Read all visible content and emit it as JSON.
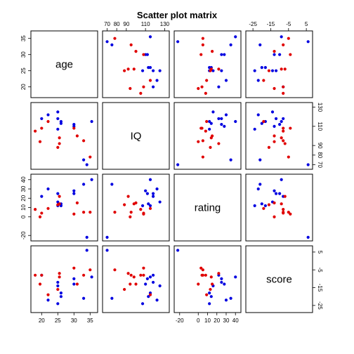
{
  "chart_data": {
    "type": "scatter",
    "title": "Scatter plot matrix",
    "variables": [
      "age",
      "IQ",
      "rating",
      "score"
    ],
    "colors": {
      "group1": "#e00000",
      "group2": "#0000e0"
    },
    "axes": {
      "age": {
        "ticks": [
          20,
          25,
          30,
          35
        ],
        "tick_labels": [
          "20",
          "25",
          "30",
          "35"
        ],
        "range": [
          17.5,
          36.5
        ],
        "tick_side": "bottom"
      },
      "IQ": {
        "ticks": [
          70,
          80,
          90,
          110,
          130
        ],
        "tick_labels": [
          "70",
          "80",
          "90",
          "110",
          "130"
        ],
        "range": [
          68,
          132
        ],
        "tick_side": "top"
      },
      "rating": {
        "ticks": [
          -20,
          0,
          10,
          20,
          30,
          40
        ],
        "tick_labels": [
          "-20",
          "0",
          "10",
          "20",
          "30",
          "40"
        ],
        "range": [
          -23,
          43
        ],
        "tick_side": "bottom"
      },
      "score": {
        "ticks": [
          -25,
          -15,
          -5,
          5
        ],
        "tick_labels": [
          "-25",
          "-15",
          "-5",
          "5"
        ],
        "range": [
          -27.5,
          7
        ],
        "tick_side": "top"
      }
    },
    "points": [
      {
        "group": "group2",
        "age": 34.0,
        "IQ": 70.0,
        "rating": -22.0,
        "score": 6.0
      },
      {
        "group": "group2",
        "age": 35.5,
        "IQ": 115.0,
        "rating": 40.0,
        "score": -9.0
      },
      {
        "group": "group2",
        "age": 33.0,
        "IQ": 75.0,
        "rating": 35.0,
        "score": -21.0
      },
      {
        "group": "group2",
        "age": 30.0,
        "IQ": 112.0,
        "rating": 25.0,
        "score": -10.0
      },
      {
        "group": "group2",
        "age": 30.0,
        "IQ": 110.0,
        "rating": 28.0,
        "score": -13.0
      },
      {
        "group": "group2",
        "age": 26.0,
        "IQ": 115.0,
        "rating": 12.0,
        "score": -18.0
      },
      {
        "group": "group2",
        "age": 25.0,
        "IQ": 107.0,
        "rating": 12.0,
        "score": -24.0
      },
      {
        "group": "group2",
        "age": 25.0,
        "IQ": 118.0,
        "rating": 25.0,
        "score": -12.0
      },
      {
        "group": "group2",
        "age": 26.0,
        "IQ": 113.0,
        "rating": 14.0,
        "score": -20.0
      },
      {
        "group": "group2",
        "age": 22.0,
        "IQ": 122.0,
        "rating": 30.0,
        "score": -22.0
      },
      {
        "group": "group2",
        "age": 25.0,
        "IQ": 125.0,
        "rating": 16.0,
        "score": -14.0
      },
      {
        "group": "group2",
        "age": 20.0,
        "IQ": 118.0,
        "rating": 22.0,
        "score": -8.0
      },
      {
        "group": "red",
        "age": 35.0,
        "IQ": 78.0,
        "rating": 5.0,
        "score": -5.0
      },
      {
        "group": "red",
        "age": 33.0,
        "IQ": 95.0,
        "rating": 5.0,
        "score": -8.0
      },
      {
        "group": "red",
        "age": 31.0,
        "IQ": 100.0,
        "rating": 15.0,
        "score": -13.0
      },
      {
        "group": "red",
        "age": 30.0,
        "IQ": 108.0,
        "rating": 3.0,
        "score": -4.0
      },
      {
        "group": "red",
        "age": 25.5,
        "IQ": 98.0,
        "rating": 14.0,
        "score": -9.0
      },
      {
        "group": "red",
        "age": 25.5,
        "IQ": 92.0,
        "rating": 22.0,
        "score": -7.0
      },
      {
        "group": "red",
        "age": 25.0,
        "IQ": 88.0,
        "rating": 13.0,
        "score": -16.0
      },
      {
        "group": "red",
        "age": 22.0,
        "IQ": 115.0,
        "rating": 9.0,
        "score": -19.0
      },
      {
        "group": "red",
        "age": 20.0,
        "IQ": 108.0,
        "rating": 4.0,
        "score": -8.0
      },
      {
        "group": "red",
        "age": 19.5,
        "IQ": 94.0,
        "rating": 0.0,
        "score": -13.0
      },
      {
        "group": "red",
        "age": 18.0,
        "IQ": 105.0,
        "rating": 8.0,
        "score": -8.0
      }
    ]
  }
}
